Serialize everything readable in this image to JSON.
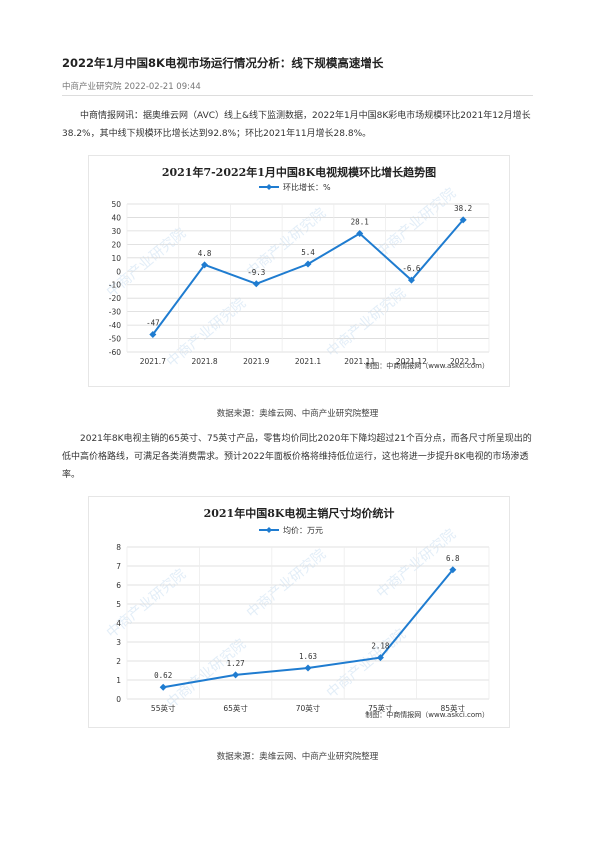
{
  "article": {
    "title": "2022年1月中国8K电视市场运行情况分析：线下规模高速增长",
    "meta": "中商产业研究院 2022-02-21 09:44",
    "para1": "中商情报网讯：据奥维云网（AVC）线上&线下监测数据，2022年1月中国8K彩电市场规模环比2021年12月增长38.2%，其中线下规模环比增长达到92.8%；环比2021年11月增长28.8%。",
    "source1": "数据来源：奥维云网、中商产业研究院整理",
    "para2": "2021年8K电视主销的65英寸、75英寸产品，零售均价同比2020年下降均超过21个百分点，而各尺寸所呈现出的低中高价格路线，可满足各类消费需求。预计2022年面板价格将维持低位运行，这也将进一步提升8K电视的市场渗透率。",
    "source2": "数据来源：奥维云网、中商产业研究院整理"
  },
  "chart_data": [
    {
      "type": "line",
      "title": "2021年7-2022年1月中国8K电视规模环比增长趋势图",
      "legend": "环比增长：%",
      "legend_position": "top",
      "categories": [
        "2021.7",
        "2021.8",
        "2021.9",
        "2021.1",
        "2021.11",
        "2021.12",
        "2022.1"
      ],
      "series": [
        {
          "name": "环比增长：%",
          "values": [
            -47,
            4.8,
            -9.3,
            5.4,
            28.1,
            -6.6,
            38.2
          ]
        }
      ],
      "data_labels": [
        "-47",
        "4.8",
        "-9.3",
        "5.4",
        "28.1",
        "-6.6",
        "38.2"
      ],
      "yticks": [
        50,
        40,
        30,
        20,
        10,
        0,
        -10,
        -20,
        -30,
        -40,
        -50,
        -60
      ],
      "ylim": [
        -60,
        50
      ],
      "grid": true,
      "credit": "制图：中商情报网（www.askci.com）",
      "watermark": "中商产业研究院",
      "color": "#1f7cd0"
    },
    {
      "type": "line",
      "title": "2021年中国8K电视主销尺寸均价统计",
      "legend": "均价：万元",
      "legend_position": "top",
      "categories": [
        "55英寸",
        "65英寸",
        "70英寸",
        "75英寸",
        "85英寸"
      ],
      "series": [
        {
          "name": "均价：万元",
          "values": [
            0.62,
            1.27,
            1.63,
            2.18,
            6.8
          ]
        }
      ],
      "data_labels": [
        "0.62",
        "1.27",
        "1.63",
        "2.18",
        "6.8"
      ],
      "yticks": [
        8,
        7,
        6,
        5,
        4,
        3,
        2,
        1,
        0
      ],
      "ylim": [
        0,
        8
      ],
      "grid": true,
      "credit": "制图：中商情报网（www.askci.com）",
      "watermark": "中商产业研究院",
      "color": "#1f7cd0"
    }
  ]
}
